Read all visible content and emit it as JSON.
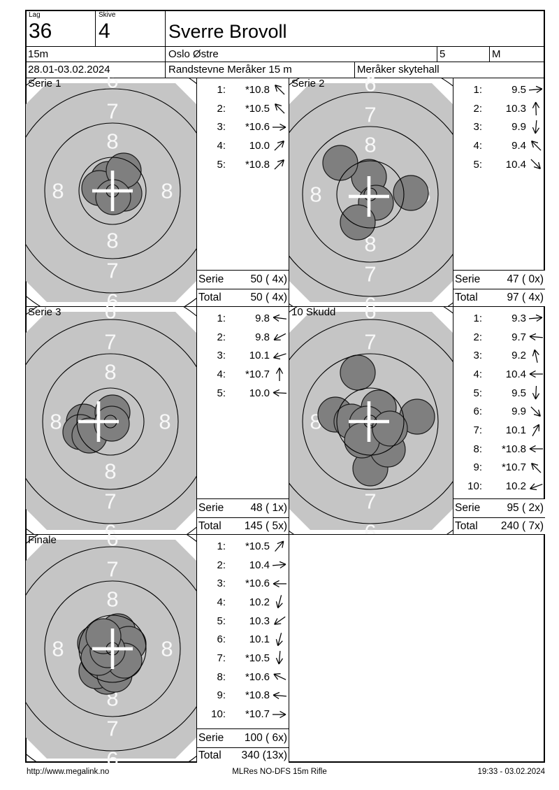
{
  "header": {
    "lag_label": "Lag",
    "lag_value": "36",
    "skive_label": "Skive",
    "skive_value": "4",
    "shooter_name": "Sverre Brovoll",
    "distance": "15m",
    "club": "Oslo Østre",
    "lane": "5",
    "class": "M",
    "date_range": "28.01-03.02.2024",
    "event_name": "Randstevne Meråker 15 m",
    "venue": "Meråker skytehall"
  },
  "target": {
    "bg_color": "#c5c5c5",
    "shot_color": "#7f7f7f",
    "ring_line_color": "#000000",
    "label_color": "#f8f8f8",
    "cross_color": "#ffffff",
    "ring_numbers": [
      "8",
      "7",
      "6"
    ]
  },
  "series": [
    {
      "label": "Serie 1",
      "shots": [
        {
          "no": "1:",
          "score": "*10.8",
          "dir": 225,
          "x": -6,
          "y": -17
        },
        {
          "no": "2:",
          "score": "*10.5",
          "dir": 225,
          "x": -19,
          "y": -4
        },
        {
          "no": "3:",
          "score": "*10.6",
          "dir": 0,
          "x": 17,
          "y": 4
        },
        {
          "no": "4:",
          "score": "10.0",
          "dir": 315,
          "x": 16,
          "y": -29
        },
        {
          "no": "5:",
          "score": "*10.8",
          "dir": 315,
          "x": 1,
          "y": 9
        }
      ],
      "cross": {
        "x": 0,
        "y": 0
      },
      "serie_label": "Serie",
      "serie_value": "50 ( 4x)",
      "total_label": "Total",
      "total_value": "50 ( 4x)"
    },
    {
      "label": "Serie 2",
      "shots": [
        {
          "no": "1:",
          "score": "9.5",
          "dir": 355,
          "x": 58,
          "y": -2
        },
        {
          "no": "2:",
          "score": "10.3",
          "dir": 268,
          "x": -2,
          "y": -25
        },
        {
          "no": "3:",
          "score": "9.9",
          "dir": 95,
          "x": 8,
          "y": 12
        },
        {
          "no": "4:",
          "score": "9.4",
          "dir": 225,
          "x": -43,
          "y": -45
        },
        {
          "no": "5:",
          "score": "10.4",
          "dir": 45,
          "x": -18,
          "y": 40
        }
      ],
      "cross": {
        "x": -2,
        "y": 3
      },
      "serie_label": "Serie",
      "serie_value": "47 ( 0x)",
      "total_label": "Total",
      "total_value": "97 ( 4x)"
    },
    {
      "label": "Serie 3",
      "shots": [
        {
          "no": "1:",
          "score": "9.8",
          "dir": 187,
          "x": -38,
          "y": 0
        },
        {
          "no": "2:",
          "score": "9.8",
          "dir": 152,
          "x": -43,
          "y": 15
        },
        {
          "no": "3:",
          "score": "10.1",
          "dir": 162,
          "x": -30,
          "y": 20
        },
        {
          "no": "4:",
          "score": "*10.7",
          "dir": 270,
          "x": 3,
          "y": -13
        },
        {
          "no": "5:",
          "score": "10.0",
          "dir": 183,
          "x": 2,
          "y": 3
        }
      ],
      "cross": {
        "x": -17,
        "y": 0
      },
      "serie_label": "Serie",
      "serie_value": "48 ( 1x)",
      "total_label": "Total",
      "total_value": "145 ( 5x)"
    },
    {
      "label": "10 Skudd",
      "shots": [
        {
          "no": "1:",
          "score": "9.3",
          "dir": 355,
          "x": 67,
          "y": -7
        },
        {
          "no": "2:",
          "score": "9.7",
          "dir": 185,
          "x": -50,
          "y": -10
        },
        {
          "no": "3:",
          "score": "9.2",
          "dir": 258,
          "x": -18,
          "y": -70
        },
        {
          "no": "4:",
          "score": "10.4",
          "dir": 180,
          "x": -27,
          "y": 0
        },
        {
          "no": "5:",
          "score": "9.5",
          "dir": 93,
          "x": 0,
          "y": 67
        },
        {
          "no": "6:",
          "score": "9.9",
          "dir": 45,
          "x": 25,
          "y": 40
        },
        {
          "no": "7:",
          "score": "10.1",
          "dir": 300,
          "x": 12,
          "y": -20
        },
        {
          "no": "8:",
          "score": "*10.8",
          "dir": 180,
          "x": -5,
          "y": 3
        },
        {
          "no": "9:",
          "score": "*10.7",
          "dir": 225,
          "x": -12,
          "y": 27
        },
        {
          "no": "10:",
          "score": "10.2",
          "dir": 160,
          "x": 28,
          "y": 10
        }
      ],
      "cross": {
        "x": -2,
        "y": 0
      },
      "serie_label": "Serie",
      "serie_value": "95 ( 2x)",
      "total_label": "Total",
      "total_value": "240 ( 7x)"
    },
    {
      "label": "Finale",
      "shots": [
        {
          "no": "1:",
          "score": "*10.5",
          "dir": 310,
          "x": 8,
          "y": -25
        },
        {
          "no": "2:",
          "score": "10.4",
          "dir": 355,
          "x": 23,
          "y": -7
        },
        {
          "no": "3:",
          "score": "*10.6",
          "dir": 180,
          "x": -25,
          "y": -8
        },
        {
          "no": "4:",
          "score": "10.2",
          "dir": 105,
          "x": -8,
          "y": 40
        },
        {
          "no": "5:",
          "score": "10.3",
          "dir": 145,
          "x": -23,
          "y": 32
        },
        {
          "no": "6:",
          "score": "10.1",
          "dir": 105,
          "x": 3,
          "y": 37
        },
        {
          "no": "7:",
          "score": "*10.5",
          "dir": 95,
          "x": 17,
          "y": 17
        },
        {
          "no": "8:",
          "score": "*10.6",
          "dir": 205,
          "x": -20,
          "y": 13
        },
        {
          "no": "9:",
          "score": "*10.8",
          "dir": 185,
          "x": -7,
          "y": 2
        },
        {
          "no": "10:",
          "score": "*10.7",
          "dir": 0,
          "x": -13,
          "y": -18
        }
      ],
      "cross": {
        "x": 0,
        "y": 0
      },
      "serie_label": "Serie",
      "serie_value": "100 ( 6x)",
      "total_label": "Total",
      "total_value": "340 (13x)"
    }
  ],
  "footer": {
    "left": "http://www.megalink.no",
    "center": "MLRes NO-DFS 15m Rifle",
    "right": "19:33 - 03.02.2024"
  }
}
